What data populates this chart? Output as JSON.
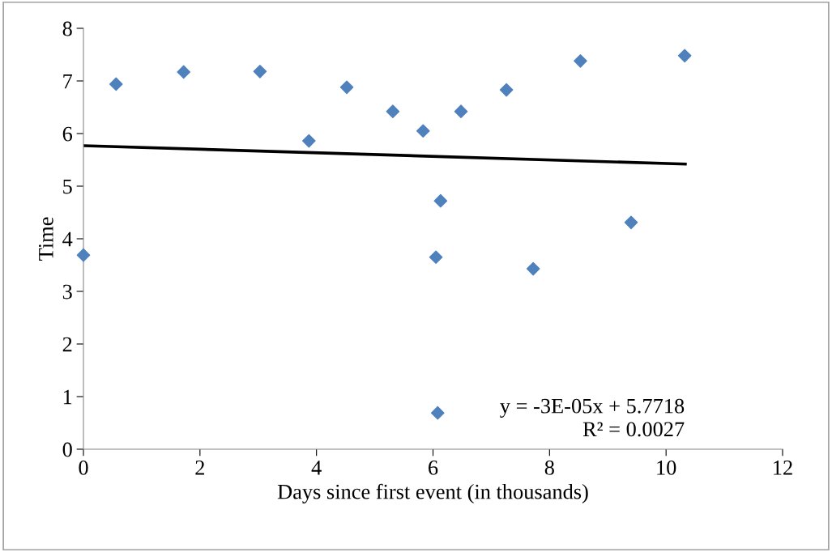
{
  "chart_data": {
    "type": "scatter",
    "xlabel": "Days since first event (in thousands)",
    "ylabel": "Time",
    "xlim": [
      0,
      12
    ],
    "xticks": [
      0,
      2,
      4,
      6,
      8,
      10,
      12
    ],
    "ylim": [
      0,
      8
    ],
    "yticks": [
      0,
      1,
      2,
      3,
      4,
      5,
      6,
      7,
      8
    ],
    "grid": false,
    "marker": "diamond",
    "series": [
      {
        "color": "#4f81bd",
        "x": [
          0,
          0.56,
          1.72,
          3.03,
          3.87,
          4.52,
          5.31,
          5.83,
          6.05,
          6.13,
          6.08,
          6.48,
          7.26,
          7.72,
          8.53,
          9.4,
          10.32
        ],
        "values": [
          3.69,
          6.94,
          7.17,
          7.18,
          5.86,
          6.88,
          6.42,
          6.05,
          3.65,
          4.72,
          0.69,
          6.42,
          6.83,
          3.43,
          7.38,
          4.31,
          7.48
        ]
      },
      {
        "type": "line",
        "color": "#000000",
        "marker": "none",
        "line_style": "solid",
        "x": [
          0,
          10.33
        ],
        "values": [
          5.77,
          5.42
        ]
      }
    ],
    "annotations": [
      "y = -3E-05x + 5.7718",
      "R² = 0.0027"
    ]
  }
}
